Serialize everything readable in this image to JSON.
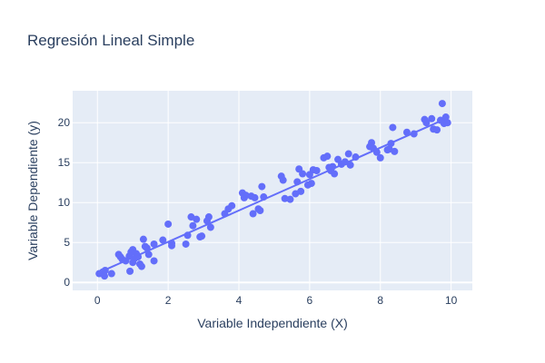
{
  "chart_data": {
    "type": "scatter",
    "title": "Regresión Lineal Simple",
    "xlabel": "Variable Independiente (X)",
    "ylabel": "Variable Dependiente (y)",
    "xlim": [
      -0.7,
      10.6
    ],
    "ylim": [
      -1.0,
      24.0
    ],
    "xticks": [
      0,
      2,
      4,
      6,
      8,
      10
    ],
    "yticks": [
      0,
      5,
      10,
      15,
      20
    ],
    "grid": true,
    "legend": "none",
    "colors": {
      "plot_background": "#e5ecf6",
      "grid": "#ffffff",
      "marker": "#636efa",
      "line": "#636efa",
      "text": "#2a3f5f"
    },
    "series": [
      {
        "type": "scatter",
        "points": [
          [
            0.05,
            1.1
          ],
          [
            0.15,
            1.3
          ],
          [
            0.2,
            0.8
          ],
          [
            0.22,
            1.5
          ],
          [
            0.4,
            1.1
          ],
          [
            0.6,
            3.5
          ],
          [
            0.65,
            3.2
          ],
          [
            0.7,
            2.9
          ],
          [
            0.8,
            2.7
          ],
          [
            0.9,
            3.3
          ],
          [
            0.92,
            1.4
          ],
          [
            0.95,
            3.8
          ],
          [
            1.0,
            2.5
          ],
          [
            1.0,
            4.1
          ],
          [
            1.05,
            3.0
          ],
          [
            1.1,
            3.6
          ],
          [
            1.15,
            3.2
          ],
          [
            1.2,
            2.3
          ],
          [
            1.25,
            2.0
          ],
          [
            1.3,
            5.4
          ],
          [
            1.35,
            4.5
          ],
          [
            1.4,
            4.3
          ],
          [
            1.45,
            3.5
          ],
          [
            1.6,
            4.8
          ],
          [
            1.6,
            2.7
          ],
          [
            1.85,
            5.3
          ],
          [
            2.0,
            7.3
          ],
          [
            2.1,
            4.6
          ],
          [
            2.1,
            4.9
          ],
          [
            2.5,
            4.8
          ],
          [
            2.55,
            5.9
          ],
          [
            2.65,
            8.2
          ],
          [
            2.7,
            7.1
          ],
          [
            2.8,
            7.9
          ],
          [
            2.9,
            5.7
          ],
          [
            2.95,
            5.8
          ],
          [
            3.1,
            7.7
          ],
          [
            3.15,
            8.2
          ],
          [
            3.2,
            6.9
          ],
          [
            3.6,
            8.6
          ],
          [
            3.7,
            9.2
          ],
          [
            3.8,
            9.6
          ],
          [
            4.1,
            11.2
          ],
          [
            4.15,
            10.6
          ],
          [
            4.2,
            10.9
          ],
          [
            4.35,
            10.8
          ],
          [
            4.4,
            8.6
          ],
          [
            4.45,
            10.6
          ],
          [
            4.55,
            9.2
          ],
          [
            4.6,
            9.0
          ],
          [
            4.65,
            12.0
          ],
          [
            4.7,
            10.7
          ],
          [
            5.2,
            13.3
          ],
          [
            5.25,
            12.8
          ],
          [
            5.3,
            10.5
          ],
          [
            5.45,
            10.4
          ],
          [
            5.6,
            11.1
          ],
          [
            5.65,
            12.6
          ],
          [
            5.7,
            14.2
          ],
          [
            5.75,
            11.4
          ],
          [
            5.8,
            13.6
          ],
          [
            5.95,
            12.2
          ],
          [
            6.0,
            13.5
          ],
          [
            6.05,
            12.4
          ],
          [
            6.1,
            14.1
          ],
          [
            6.2,
            14.0
          ],
          [
            6.4,
            15.6
          ],
          [
            6.5,
            15.8
          ],
          [
            6.55,
            14.4
          ],
          [
            6.6,
            14.0
          ],
          [
            6.65,
            14.5
          ],
          [
            6.7,
            13.6
          ],
          [
            6.8,
            15.4
          ],
          [
            6.9,
            14.8
          ],
          [
            7.0,
            15.1
          ],
          [
            7.1,
            16.1
          ],
          [
            7.15,
            14.7
          ],
          [
            7.3,
            15.7
          ],
          [
            7.7,
            17.0
          ],
          [
            7.75,
            17.5
          ],
          [
            7.8,
            16.8
          ],
          [
            7.9,
            16.3
          ],
          [
            8.0,
            15.6
          ],
          [
            8.2,
            16.6
          ],
          [
            8.25,
            16.7
          ],
          [
            8.3,
            17.4
          ],
          [
            8.35,
            19.4
          ],
          [
            8.4,
            16.4
          ],
          [
            8.75,
            18.8
          ],
          [
            8.95,
            18.6
          ],
          [
            9.25,
            20.4
          ],
          [
            9.3,
            20.0
          ],
          [
            9.45,
            20.5
          ],
          [
            9.5,
            19.2
          ],
          [
            9.6,
            19.1
          ],
          [
            9.7,
            20.3
          ],
          [
            9.75,
            22.4
          ],
          [
            9.8,
            19.9
          ],
          [
            9.85,
            20.7
          ],
          [
            9.9,
            20.0
          ]
        ]
      },
      {
        "type": "line",
        "points": [
          [
            0.05,
            1.25
          ],
          [
            9.9,
            20.6
          ]
        ]
      }
    ]
  }
}
